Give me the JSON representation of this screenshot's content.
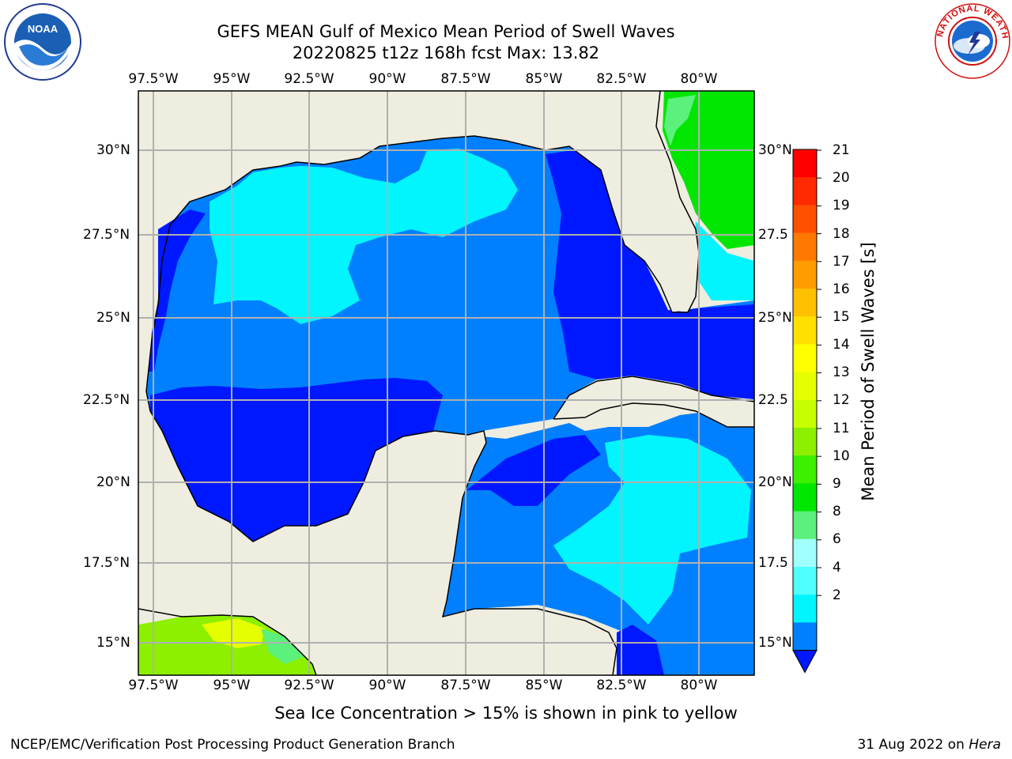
{
  "title_line1": "GEFS MEAN Gulf of Mexico Mean Period of Swell Waves",
  "title_line2": "20220825 t12z 168h fcst   Max: 13.82",
  "lon_labels": [
    "97.5°W",
    "95°W",
    "92.5°W",
    "90°W",
    "87.5°W",
    "85°W",
    "82.5°W",
    "80°W"
  ],
  "lat_labels_left": [
    "30°N",
    "27.5°N",
    "25°N",
    "22.5°N",
    "20°N",
    "17.5°N",
    "15°N"
  ],
  "lat_labels_right": [
    "30°N",
    "27.5",
    "25°N",
    "22.5",
    "20°N",
    "17.5",
    "15°N"
  ],
  "colorbar": {
    "title": "Mean Period of Swell Waves [s]",
    "ticks": [
      "21",
      "20",
      "19",
      "18",
      "17",
      "16",
      "15",
      "14",
      "13",
      "12",
      "11",
      "10",
      "9",
      "8",
      "6",
      "4",
      "2"
    ],
    "colors": [
      "#ff0000",
      "#ff2a00",
      "#ff5000",
      "#ff7800",
      "#ff9c00",
      "#ffc000",
      "#ffe000",
      "#ffff00",
      "#e6ff00",
      "#c8ff00",
      "#8cf000",
      "#3cf000",
      "#00e600",
      "#5cf07c",
      "#a0ffff",
      "#50ffff",
      "#00f5ff",
      "#0080ff",
      "#0018ff"
    ]
  },
  "note": "Sea Ice Concentration > 15% is shown in pink to yellow",
  "footer_left": "NCEP/EMC/Verification Post Processing Product Generation Branch",
  "footer_date": "31 Aug 2022 on ",
  "footer_machine": "Hera",
  "logos": {
    "left": "NOAA",
    "right": "NATIONAL WEATHER SERVICE"
  },
  "colors": {
    "land": "#eeede0",
    "dark_blue": "#0018ff",
    "mid_blue": "#0080ff",
    "cyan": "#00f5ff",
    "green": "#00e600",
    "light_green": "#5cf07c",
    "yellow": "#e6ff00",
    "grid": "#b0b0b0"
  }
}
